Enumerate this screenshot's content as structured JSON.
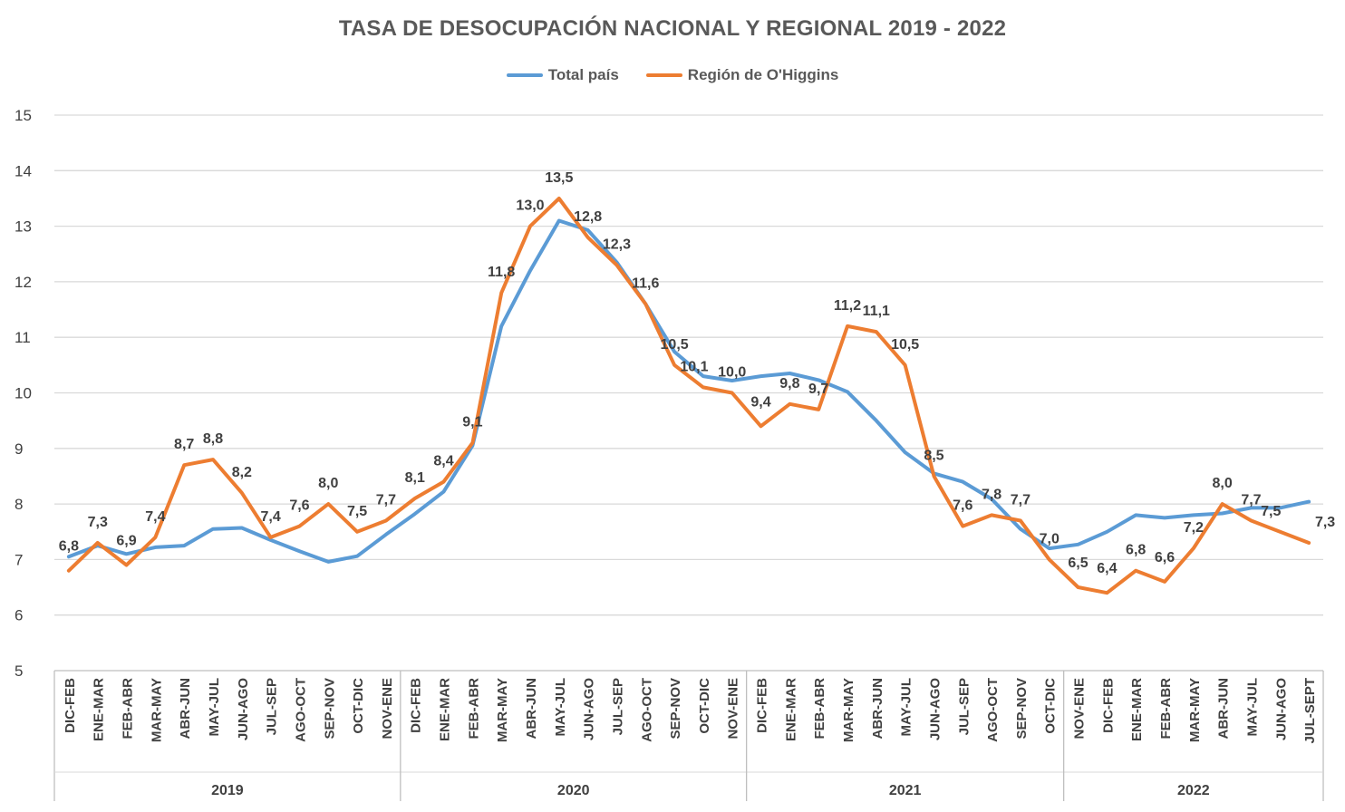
{
  "chart_data": {
    "type": "line",
    "title": "TASA DE DESOCUPACIÓN NACIONAL Y REGIONAL 2019 - 2022",
    "ylim": [
      5,
      15
    ],
    "yticks": [
      5,
      6,
      7,
      8,
      9,
      10,
      11,
      12,
      13,
      14,
      15
    ],
    "grid": true,
    "legend_position": "top-center",
    "groups": [
      {
        "label": "2019",
        "categories": [
          "DIC-FEB",
          "ENE-MAR",
          "FEB-ABR",
          "MAR-MAY",
          "ABR-JUN",
          "MAY-JUL",
          "JUN-AGO",
          "JUL-SEP",
          "AGO-OCT",
          "SEP-NOV",
          "OCT-DIC",
          "NOV-ENE"
        ]
      },
      {
        "label": "2020",
        "categories": [
          "DIC-FEB",
          "ENE-MAR",
          "FEB-ABR",
          "MAR-MAY",
          "ABR-JUN",
          "MAY-JUL",
          "JUN-AGO",
          "JUL-SEP",
          "AGO-OCT",
          "SEP-NOV",
          "OCT-DIC",
          "NOV-ENE"
        ]
      },
      {
        "label": "2021",
        "categories": [
          "DIC-FEB",
          "ENE-MAR",
          "FEB-ABR",
          "MAR-MAY",
          "ABR-JUN",
          "MAY-JUL",
          "JUN-AGO",
          "JUL-SEP",
          "AGO-OCT",
          "SEP-NOV",
          "OCT-DIC"
        ]
      },
      {
        "label": "2022",
        "categories": [
          "NOV-ENE",
          "DIC-FEB",
          "ENE-MAR",
          "FEB-ABR",
          "MAR-MAY",
          "ABR-JUN",
          "MAY-JUL",
          "JUN-AGO",
          "JUL-SEPT"
        ]
      }
    ],
    "series": [
      {
        "name": "Total país",
        "color": "#5B9BD5",
        "show_labels": false,
        "values": [
          7.05,
          7.25,
          7.1,
          7.22,
          7.25,
          7.55,
          7.57,
          7.35,
          7.15,
          6.96,
          7.06,
          7.45,
          7.82,
          8.22,
          9.05,
          11.2,
          12.2,
          13.1,
          12.93,
          12.35,
          11.6,
          10.74,
          10.3,
          10.22,
          10.3,
          10.35,
          10.23,
          10.02,
          9.5,
          8.93,
          8.55,
          8.4,
          8.09,
          7.55,
          7.2,
          7.27,
          7.5,
          7.8,
          7.75,
          7.8,
          7.83,
          7.93,
          7.93,
          8.04
        ]
      },
      {
        "name": "Región de O'Higgins",
        "color": "#ED7D31",
        "show_labels": true,
        "values": [
          6.8,
          7.3,
          6.9,
          7.4,
          8.7,
          8.8,
          8.2,
          7.4,
          7.6,
          8.0,
          7.5,
          7.7,
          8.1,
          8.4,
          9.1,
          11.8,
          13.0,
          13.5,
          12.8,
          12.3,
          11.6,
          10.5,
          10.1,
          10.0,
          9.4,
          9.8,
          9.7,
          11.2,
          11.1,
          10.5,
          8.5,
          7.6,
          7.8,
          7.7,
          7.0,
          6.5,
          6.4,
          6.8,
          6.6,
          7.2,
          8.0,
          7.7,
          7.5,
          7.3
        ],
        "labels": [
          "6,8",
          "7,3",
          "6,9",
          "7,4",
          "8,7",
          "8,8",
          "8,2",
          "7,4",
          "7,6",
          "8,0",
          "7,5",
          "7,7",
          "8,1",
          "8,4",
          "9,1",
          "11,8",
          "13,0",
          "13,5",
          "12,8",
          "12,3",
          "11,6",
          "10,5",
          "10,1",
          "10,0",
          "9,4",
          "9,8",
          "9,7",
          "11,2",
          "11,1",
          "10,5",
          "8,5",
          "7,6",
          "7,8",
          "7,7",
          "7,0",
          "6,5",
          "6,4",
          "6,8",
          "6,6",
          "7,2",
          "8,0",
          "7,7",
          "7,5",
          "7,3"
        ]
      }
    ]
  }
}
